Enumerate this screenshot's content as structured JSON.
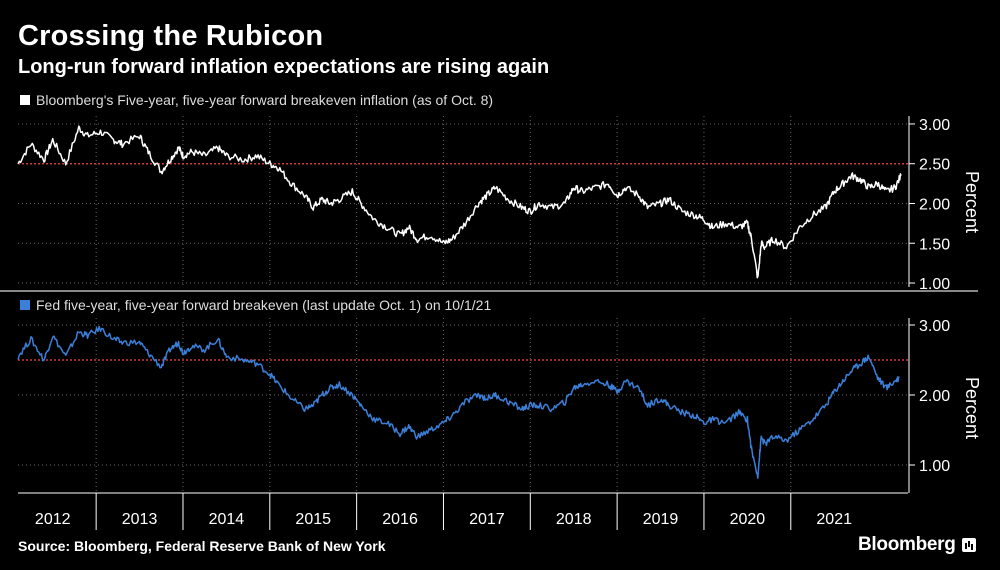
{
  "header": {
    "title": "Crossing the Rubicon",
    "subtitle": "Long-run forward inflation expectations are rising again"
  },
  "footer": {
    "source": "Source: Bloomberg, Federal Reserve Bank of New York",
    "brand": "Bloomberg"
  },
  "colors": {
    "background": "#000000",
    "series1": "#ffffff",
    "series2": "#3b7fd9",
    "threshold": "#d13b3b",
    "grid": "#666666"
  },
  "chart_data": [
    {
      "type": "line",
      "legend": "Bloomberg's Five-year, five-year forward breakeven inflation (as of Oct. 8)",
      "ylabel": "Percent",
      "ylim": [
        0.95,
        3.1
      ],
      "yticks": [
        "1.00",
        "1.50",
        "2.00",
        "2.50",
        "3.00"
      ],
      "ytick_values": [
        1.0,
        1.5,
        2.0,
        2.5,
        3.0
      ],
      "threshold": 2.5,
      "xlim": [
        2011.6,
        2021.85
      ],
      "x": [
        2011.6,
        2011.75,
        2011.9,
        2012.0,
        2012.15,
        2012.3,
        2012.4,
        2012.55,
        2012.7,
        2012.8,
        2013.0,
        2013.1,
        2013.25,
        2013.35,
        2013.45,
        2013.5,
        2013.6,
        2013.75,
        2013.9,
        2014.0,
        2014.2,
        2014.35,
        2014.5,
        2014.6,
        2014.75,
        2014.9,
        2015.0,
        2015.1,
        2015.2,
        2015.3,
        2015.45,
        2015.55,
        2015.7,
        2015.85,
        2016.0,
        2016.1,
        2016.2,
        2016.35,
        2016.5,
        2016.6,
        2016.75,
        2016.9,
        2017.0,
        2017.1,
        2017.25,
        2017.4,
        2017.5,
        2017.6,
        2017.75,
        2017.9,
        2018.0,
        2018.1,
        2018.25,
        2018.4,
        2018.5,
        2018.6,
        2018.75,
        2018.85,
        2019.0,
        2019.1,
        2019.25,
        2019.4,
        2019.5,
        2019.6,
        2019.75,
        2019.9,
        2020.0,
        2020.05,
        2020.12,
        2020.16,
        2020.2,
        2020.3,
        2020.45,
        2020.6,
        2020.75,
        2020.9,
        2021.0,
        2021.1,
        2021.2,
        2021.3,
        2021.4,
        2021.5,
        2021.6,
        2021.7,
        2021.77
      ],
      "values": [
        2.5,
        2.75,
        2.55,
        2.8,
        2.5,
        2.95,
        2.85,
        2.9,
        2.8,
        2.75,
        2.85,
        2.65,
        2.4,
        2.55,
        2.7,
        2.6,
        2.65,
        2.6,
        2.7,
        2.6,
        2.55,
        2.6,
        2.5,
        2.45,
        2.25,
        2.1,
        1.95,
        2.05,
        2.0,
        2.05,
        2.15,
        2.0,
        1.8,
        1.7,
        1.6,
        1.7,
        1.55,
        1.6,
        1.5,
        1.55,
        1.75,
        2.0,
        2.1,
        2.2,
        2.05,
        1.95,
        1.9,
        2.0,
        1.95,
        2.0,
        2.2,
        2.15,
        2.2,
        2.25,
        2.1,
        2.2,
        2.1,
        1.95,
        2.0,
        2.05,
        1.9,
        1.85,
        1.8,
        1.7,
        1.75,
        1.7,
        1.75,
        1.55,
        1.05,
        1.5,
        1.45,
        1.55,
        1.45,
        1.7,
        1.85,
        1.95,
        2.15,
        2.25,
        2.35,
        2.3,
        2.2,
        2.25,
        2.15,
        2.2,
        2.35
      ]
    },
    {
      "type": "line",
      "legend": "Fed five-year, five-year forward breakeven (last update Oct. 1) on 10/1/21",
      "ylabel": "Percent",
      "ylim": [
        0.6,
        3.1
      ],
      "yticks": [
        "1.00",
        "2.00",
        "3.00"
      ],
      "ytick_values": [
        1.0,
        2.0,
        3.0
      ],
      "threshold": 2.5,
      "xlim": [
        2011.6,
        2021.85
      ],
      "x": [
        2011.6,
        2011.75,
        2011.9,
        2012.0,
        2012.15,
        2012.3,
        2012.4,
        2012.55,
        2012.7,
        2012.8,
        2013.0,
        2013.1,
        2013.25,
        2013.35,
        2013.45,
        2013.5,
        2013.6,
        2013.75,
        2013.9,
        2014.0,
        2014.2,
        2014.35,
        2014.5,
        2014.6,
        2014.75,
        2014.9,
        2015.0,
        2015.1,
        2015.2,
        2015.3,
        2015.45,
        2015.55,
        2015.7,
        2015.85,
        2016.0,
        2016.1,
        2016.2,
        2016.35,
        2016.5,
        2016.6,
        2016.75,
        2016.9,
        2017.0,
        2017.1,
        2017.25,
        2017.4,
        2017.5,
        2017.6,
        2017.75,
        2017.9,
        2018.0,
        2018.1,
        2018.25,
        2018.4,
        2018.5,
        2018.6,
        2018.75,
        2018.85,
        2019.0,
        2019.1,
        2019.25,
        2019.4,
        2019.5,
        2019.6,
        2019.75,
        2019.9,
        2020.0,
        2020.05,
        2020.12,
        2020.16,
        2020.2,
        2020.3,
        2020.45,
        2020.6,
        2020.75,
        2020.9,
        2021.0,
        2021.1,
        2021.2,
        2021.3,
        2021.4,
        2021.5,
        2021.6,
        2021.7,
        2021.75
      ],
      "values": [
        2.55,
        2.8,
        2.5,
        2.85,
        2.55,
        2.9,
        2.85,
        2.95,
        2.8,
        2.75,
        2.75,
        2.6,
        2.4,
        2.65,
        2.75,
        2.6,
        2.7,
        2.65,
        2.8,
        2.55,
        2.5,
        2.45,
        2.3,
        2.15,
        1.95,
        1.8,
        1.85,
        2.0,
        2.1,
        2.15,
        2.0,
        1.85,
        1.65,
        1.6,
        1.45,
        1.55,
        1.4,
        1.5,
        1.6,
        1.7,
        1.9,
        2.0,
        1.95,
        2.0,
        1.9,
        1.8,
        1.85,
        1.85,
        1.8,
        1.9,
        2.1,
        2.15,
        2.2,
        2.15,
        2.05,
        2.2,
        2.1,
        1.85,
        1.95,
        1.85,
        1.75,
        1.7,
        1.6,
        1.65,
        1.6,
        1.75,
        1.65,
        1.2,
        0.85,
        1.4,
        1.3,
        1.4,
        1.35,
        1.5,
        1.65,
        1.85,
        2.05,
        2.2,
        2.35,
        2.45,
        2.55,
        2.25,
        2.1,
        2.2,
        2.25
      ]
    }
  ],
  "x_axis": {
    "labels": [
      "2012",
      "2013",
      "2014",
      "2015",
      "2016",
      "2017",
      "2018",
      "2019",
      "2020",
      "2021"
    ],
    "label_positions": [
      2012.0,
      2013.0,
      2014.0,
      2015.0,
      2016.0,
      2017.0,
      2018.0,
      2019.0,
      2020.0,
      2021.0
    ],
    "gridlines": [
      2012.5,
      2013.5,
      2014.5,
      2015.5,
      2016.5,
      2017.5,
      2018.5,
      2019.5,
      2020.5
    ]
  }
}
